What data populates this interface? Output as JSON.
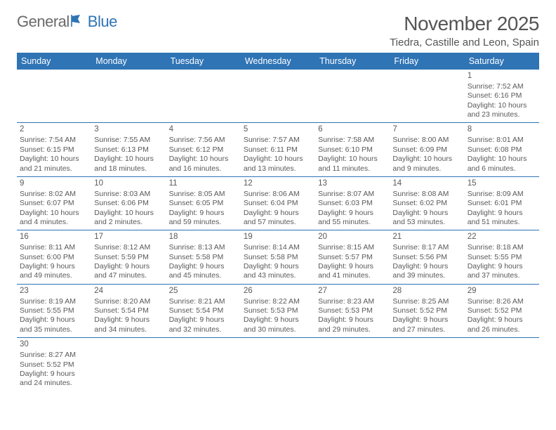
{
  "logo": {
    "text1": "General",
    "text2": "Blue"
  },
  "title": "November 2025",
  "location": "Tiedra, Castille and Leon, Spain",
  "colors": {
    "header_bg": "#2f74b5",
    "header_fg": "#ffffff",
    "row_border": "#2f74b5",
    "text": "#595959",
    "title_color": "#555555"
  },
  "fonts": {
    "title_size": 28,
    "location_size": 15,
    "weekday_size": 12.5,
    "daynum_size": 11.5,
    "body_size": 10.5
  },
  "weekdays": [
    "Sunday",
    "Monday",
    "Tuesday",
    "Wednesday",
    "Thursday",
    "Friday",
    "Saturday"
  ],
  "weeks": [
    [
      null,
      null,
      null,
      null,
      null,
      null,
      {
        "n": "1",
        "sunrise": "7:52 AM",
        "sunset": "6:16 PM",
        "daylight": "10 hours and 23 minutes."
      }
    ],
    [
      {
        "n": "2",
        "sunrise": "7:54 AM",
        "sunset": "6:15 PM",
        "daylight": "10 hours and 21 minutes."
      },
      {
        "n": "3",
        "sunrise": "7:55 AM",
        "sunset": "6:13 PM",
        "daylight": "10 hours and 18 minutes."
      },
      {
        "n": "4",
        "sunrise": "7:56 AM",
        "sunset": "6:12 PM",
        "daylight": "10 hours and 16 minutes."
      },
      {
        "n": "5",
        "sunrise": "7:57 AM",
        "sunset": "6:11 PM",
        "daylight": "10 hours and 13 minutes."
      },
      {
        "n": "6",
        "sunrise": "7:58 AM",
        "sunset": "6:10 PM",
        "daylight": "10 hours and 11 minutes."
      },
      {
        "n": "7",
        "sunrise": "8:00 AM",
        "sunset": "6:09 PM",
        "daylight": "10 hours and 9 minutes."
      },
      {
        "n": "8",
        "sunrise": "8:01 AM",
        "sunset": "6:08 PM",
        "daylight": "10 hours and 6 minutes."
      }
    ],
    [
      {
        "n": "9",
        "sunrise": "8:02 AM",
        "sunset": "6:07 PM",
        "daylight": "10 hours and 4 minutes."
      },
      {
        "n": "10",
        "sunrise": "8:03 AM",
        "sunset": "6:06 PM",
        "daylight": "10 hours and 2 minutes."
      },
      {
        "n": "11",
        "sunrise": "8:05 AM",
        "sunset": "6:05 PM",
        "daylight": "9 hours and 59 minutes."
      },
      {
        "n": "12",
        "sunrise": "8:06 AM",
        "sunset": "6:04 PM",
        "daylight": "9 hours and 57 minutes."
      },
      {
        "n": "13",
        "sunrise": "8:07 AM",
        "sunset": "6:03 PM",
        "daylight": "9 hours and 55 minutes."
      },
      {
        "n": "14",
        "sunrise": "8:08 AM",
        "sunset": "6:02 PM",
        "daylight": "9 hours and 53 minutes."
      },
      {
        "n": "15",
        "sunrise": "8:09 AM",
        "sunset": "6:01 PM",
        "daylight": "9 hours and 51 minutes."
      }
    ],
    [
      {
        "n": "16",
        "sunrise": "8:11 AM",
        "sunset": "6:00 PM",
        "daylight": "9 hours and 49 minutes."
      },
      {
        "n": "17",
        "sunrise": "8:12 AM",
        "sunset": "5:59 PM",
        "daylight": "9 hours and 47 minutes."
      },
      {
        "n": "18",
        "sunrise": "8:13 AM",
        "sunset": "5:58 PM",
        "daylight": "9 hours and 45 minutes."
      },
      {
        "n": "19",
        "sunrise": "8:14 AM",
        "sunset": "5:58 PM",
        "daylight": "9 hours and 43 minutes."
      },
      {
        "n": "20",
        "sunrise": "8:15 AM",
        "sunset": "5:57 PM",
        "daylight": "9 hours and 41 minutes."
      },
      {
        "n": "21",
        "sunrise": "8:17 AM",
        "sunset": "5:56 PM",
        "daylight": "9 hours and 39 minutes."
      },
      {
        "n": "22",
        "sunrise": "8:18 AM",
        "sunset": "5:55 PM",
        "daylight": "9 hours and 37 minutes."
      }
    ],
    [
      {
        "n": "23",
        "sunrise": "8:19 AM",
        "sunset": "5:55 PM",
        "daylight": "9 hours and 35 minutes."
      },
      {
        "n": "24",
        "sunrise": "8:20 AM",
        "sunset": "5:54 PM",
        "daylight": "9 hours and 34 minutes."
      },
      {
        "n": "25",
        "sunrise": "8:21 AM",
        "sunset": "5:54 PM",
        "daylight": "9 hours and 32 minutes."
      },
      {
        "n": "26",
        "sunrise": "8:22 AM",
        "sunset": "5:53 PM",
        "daylight": "9 hours and 30 minutes."
      },
      {
        "n": "27",
        "sunrise": "8:23 AM",
        "sunset": "5:53 PM",
        "daylight": "9 hours and 29 minutes."
      },
      {
        "n": "28",
        "sunrise": "8:25 AM",
        "sunset": "5:52 PM",
        "daylight": "9 hours and 27 minutes."
      },
      {
        "n": "29",
        "sunrise": "8:26 AM",
        "sunset": "5:52 PM",
        "daylight": "9 hours and 26 minutes."
      }
    ],
    [
      {
        "n": "30",
        "sunrise": "8:27 AM",
        "sunset": "5:52 PM",
        "daylight": "9 hours and 24 minutes."
      },
      null,
      null,
      null,
      null,
      null,
      null
    ]
  ],
  "labels": {
    "sunrise": "Sunrise: ",
    "sunset": "Sunset: ",
    "daylight": "Daylight: "
  }
}
